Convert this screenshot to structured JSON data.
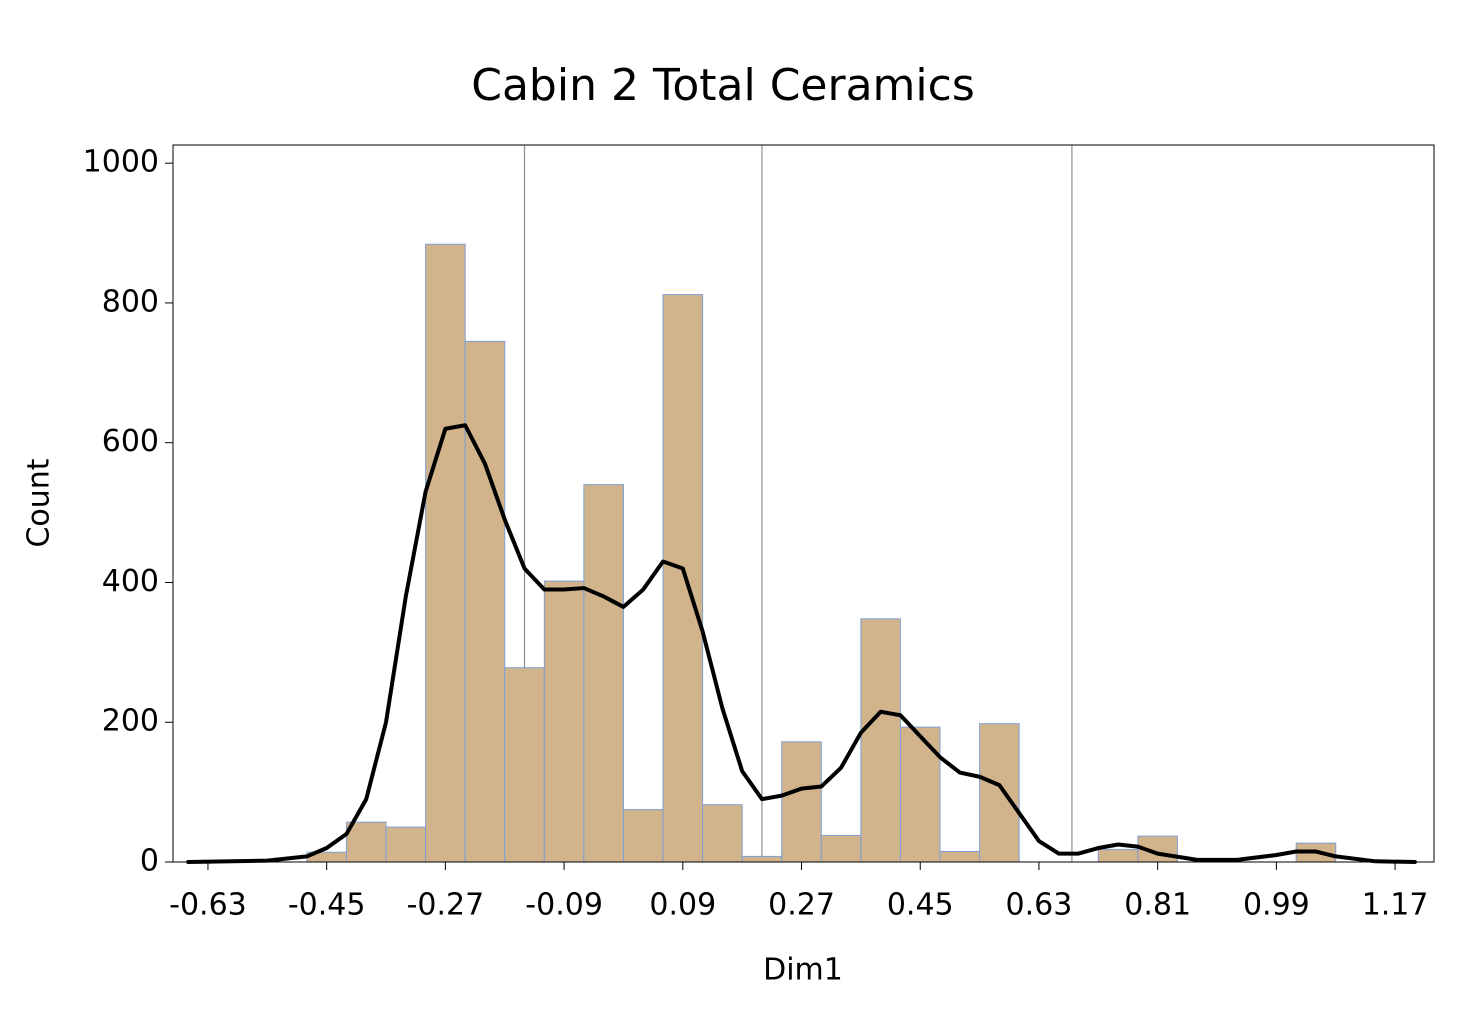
{
  "chart_data": {
    "type": "histogram",
    "title": "Cabin 2 Total Ceramics",
    "x_label": "Dim1",
    "y_label": "Count",
    "bins": [
      -0.48,
      -0.42,
      -0.36,
      -0.3,
      -0.24,
      -0.18,
      -0.12,
      -0.06,
      0.0,
      0.06,
      0.12,
      0.18,
      0.24,
      0.3,
      0.36,
      0.42,
      0.48,
      0.54,
      0.6,
      0.66,
      0.72,
      0.78,
      0.84,
      0.9,
      0.96,
      1.02,
      1.08
    ],
    "counts": [
      14,
      57,
      50,
      884,
      745,
      278,
      402,
      540,
      75,
      812,
      82,
      8,
      172,
      38,
      348,
      193,
      15,
      198,
      0,
      0,
      18,
      37,
      0,
      0,
      0,
      27
    ],
    "color": "#d2b48c",
    "edge_color": "#7f9fd4",
    "density": {
      "color": "#000000",
      "x": [
        -0.66,
        -0.54,
        -0.48,
        -0.45,
        -0.42,
        -0.39,
        -0.36,
        -0.33,
        -0.3,
        -0.27,
        -0.24,
        -0.21,
        -0.18,
        -0.15,
        -0.12,
        -0.09,
        -0.06,
        -0.03,
        0.0,
        0.03,
        0.06,
        0.09,
        0.12,
        0.15,
        0.18,
        0.21,
        0.24,
        0.27,
        0.3,
        0.33,
        0.36,
        0.39,
        0.42,
        0.45,
        0.48,
        0.51,
        0.54,
        0.57,
        0.6,
        0.63,
        0.66,
        0.69,
        0.72,
        0.75,
        0.78,
        0.81,
        0.87,
        0.93,
        0.99,
        1.02,
        1.05,
        1.08,
        1.14,
        1.2
      ],
      "y": [
        0,
        2,
        8,
        20,
        40,
        90,
        200,
        380,
        530,
        620,
        625,
        570,
        490,
        420,
        390,
        390,
        392,
        380,
        365,
        390,
        430,
        420,
        330,
        220,
        130,
        90,
        95,
        105,
        108,
        135,
        185,
        215,
        210,
        180,
        150,
        128,
        122,
        110,
        70,
        30,
        12,
        12,
        20,
        25,
        22,
        12,
        3,
        3,
        10,
        15,
        15,
        8,
        1,
        0
      ]
    },
    "reference_lines": [
      -0.15,
      0.21,
      0.68
    ],
    "reference_color": "#8a8f99",
    "xlim": [
      -0.683,
      1.229
    ],
    "ylim": [
      0,
      1026
    ],
    "xticks": [
      -0.63,
      -0.45,
      -0.27,
      -0.09,
      0.09,
      0.27,
      0.45,
      0.63,
      0.81,
      0.99,
      1.17
    ],
    "yticks": [
      0,
      200,
      400,
      600,
      800,
      1000
    ]
  }
}
